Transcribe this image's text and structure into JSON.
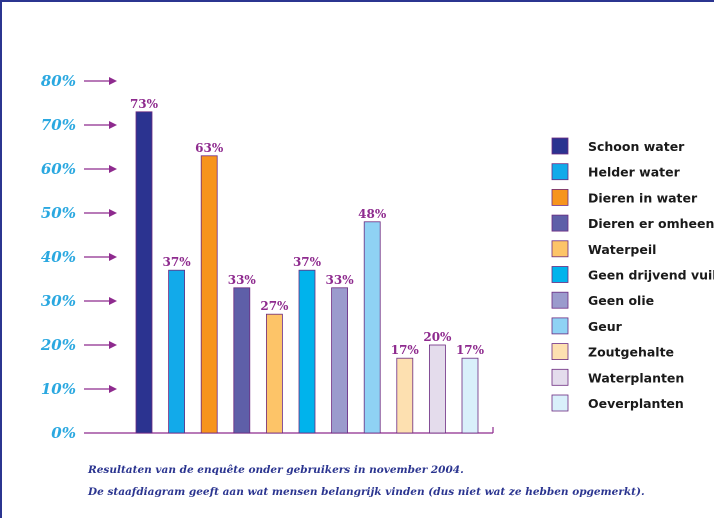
{
  "chart_data": {
    "type": "bar",
    "categories": [
      "Schoon water",
      "Helder water",
      "Dieren in water",
      "Dieren er omheen",
      "Waterpeil",
      "Geen drijvend vuil",
      "Geen olie",
      "Geur",
      "Zoutgehalte",
      "Waterplanten",
      "Oeverplanten"
    ],
    "values": [
      73,
      37,
      63,
      33,
      27,
      37,
      33,
      48,
      17,
      20,
      17
    ],
    "value_labels": [
      "73%",
      "37%",
      "63%",
      "33%",
      "27%",
      "37%",
      "33%",
      "48%",
      "17%",
      "20%",
      "17%"
    ],
    "colors": [
      "#2b3390",
      "#12aaea",
      "#f7941d",
      "#5e5fa8",
      "#fdc468",
      "#00b3ec",
      "#9b9bcd",
      "#8fd2f4",
      "#fde0b0",
      "#e4dcec",
      "#d9f0fb"
    ],
    "yticks": [
      "0%",
      "10%",
      "20%",
      "30%",
      "40%",
      "50%",
      "60%",
      "70%",
      "80%"
    ],
    "ytick_values": [
      0,
      10,
      20,
      30,
      40,
      50,
      60,
      70,
      80
    ],
    "ylim": [
      0,
      80
    ],
    "legend": {
      "position": "right"
    }
  },
  "colors": {
    "axis": "#8e2a8e",
    "tick_text": "#2aa8e0",
    "label_text": "#8e2a8e",
    "caption": "#2b3590",
    "frame": "#2b3590"
  },
  "caption": {
    "line1": "Resultaten van de enquête onder gebruikers in november 2004.",
    "line2": "De staafdiagram geeft aan wat mensen belangrijk vinden (dus niet wat ze hebben opgemerkt)."
  }
}
